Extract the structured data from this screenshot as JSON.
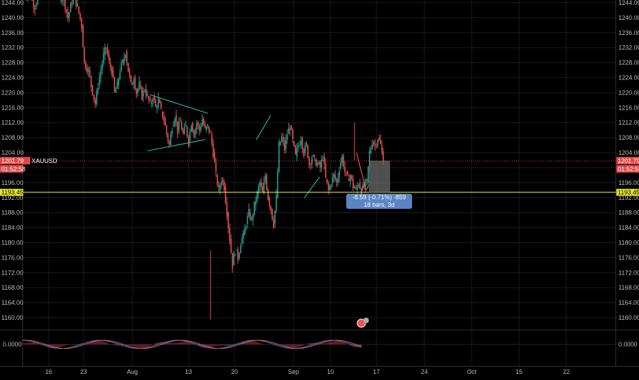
{
  "chart_data": {
    "type": "candlestick",
    "symbol": "XAUUSD",
    "ylim": [
      1158,
      1245
    ],
    "y_ticks": [
      "1244.00",
      "1240.00",
      "1236.00",
      "1232.00",
      "1228.00",
      "1224.00",
      "1220.00",
      "1216.00",
      "1212.00",
      "1208.00",
      "1204.00",
      "1200.00",
      "1196.00",
      "1192.00",
      "1188.00",
      "1184.00",
      "1180.00",
      "1176.00",
      "1172.00",
      "1168.00",
      "1164.00",
      "1160.00"
    ],
    "x_ticks": [
      "16",
      "23",
      "Aug",
      "13",
      "20",
      "Sep",
      "10",
      "17",
      "24",
      "Oct",
      "15",
      "22"
    ],
    "current_price": {
      "value": 1201.79,
      "label": "1201.79",
      "countdown": "01:52:58"
    },
    "horizontal_level": {
      "value": 1193.45,
      "label": "1193.45"
    },
    "measure": {
      "line1": "-8.59 (-0.71%) -859",
      "line2": "18 bars, 3d"
    },
    "close_path": [
      [
        0,
        1245
      ],
      [
        8,
        1247
      ],
      [
        18,
        1243
      ],
      [
        26,
        1248
      ],
      [
        34,
        1246
      ],
      [
        44,
        1249
      ],
      [
        52,
        1246
      ],
      [
        60,
        1245
      ],
      [
        66,
        1240
      ],
      [
        74,
        1246
      ],
      [
        80,
        1243
      ],
      [
        86,
        1238
      ],
      [
        90,
        1228
      ],
      [
        96,
        1226
      ],
      [
        100,
        1222
      ],
      [
        106,
        1217
      ],
      [
        110,
        1222
      ],
      [
        114,
        1226
      ],
      [
        118,
        1230
      ],
      [
        122,
        1232
      ],
      [
        126,
        1228
      ],
      [
        130,
        1226
      ],
      [
        134,
        1220
      ],
      [
        138,
        1222
      ],
      [
        142,
        1226
      ],
      [
        146,
        1228
      ],
      [
        150,
        1231
      ],
      [
        154,
        1226
      ],
      [
        158,
        1222
      ],
      [
        162,
        1224
      ],
      [
        166,
        1220
      ],
      [
        170,
        1222
      ],
      [
        174,
        1219
      ],
      [
        178,
        1221
      ],
      [
        182,
        1219
      ],
      [
        186,
        1217
      ],
      [
        190,
        1219
      ],
      [
        194,
        1216
      ],
      [
        198,
        1218
      ],
      [
        202,
        1215
      ],
      [
        206,
        1213
      ],
      [
        210,
        1209
      ],
      [
        214,
        1206
      ],
      [
        218,
        1211
      ],
      [
        222,
        1214
      ],
      [
        226,
        1210
      ],
      [
        230,
        1212
      ],
      [
        234,
        1209
      ],
      [
        238,
        1211
      ],
      [
        242,
        1207
      ],
      [
        246,
        1212
      ],
      [
        250,
        1209
      ],
      [
        254,
        1212
      ],
      [
        258,
        1210
      ],
      [
        262,
        1213
      ],
      [
        266,
        1210
      ],
      [
        270,
        1211
      ],
      [
        274,
        1209
      ],
      [
        278,
        1204
      ],
      [
        282,
        1198
      ],
      [
        286,
        1194
      ],
      [
        290,
        1197
      ],
      [
        294,
        1195
      ],
      [
        298,
        1188
      ],
      [
        302,
        1181
      ],
      [
        306,
        1174
      ],
      [
        310,
        1178
      ],
      [
        314,
        1176
      ],
      [
        318,
        1180
      ],
      [
        322,
        1182
      ],
      [
        326,
        1185
      ],
      [
        330,
        1188
      ],
      [
        334,
        1186
      ],
      [
        338,
        1190
      ],
      [
        342,
        1193
      ],
      [
        346,
        1196
      ],
      [
        350,
        1193
      ],
      [
        354,
        1198
      ],
      [
        358,
        1192
      ],
      [
        362,
        1189
      ],
      [
        366,
        1185
      ],
      [
        370,
        1192
      ],
      [
        374,
        1206
      ],
      [
        378,
        1208
      ],
      [
        382,
        1205
      ],
      [
        386,
        1209
      ],
      [
        390,
        1211
      ],
      [
        394,
        1207
      ],
      [
        398,
        1203
      ],
      [
        402,
        1206
      ],
      [
        406,
        1208
      ],
      [
        410,
        1204
      ],
      [
        414,
        1206
      ],
      [
        418,
        1201
      ],
      [
        422,
        1203
      ],
      [
        426,
        1202
      ],
      [
        430,
        1201
      ],
      [
        434,
        1200
      ],
      [
        438,
        1203
      ],
      [
        442,
        1197
      ],
      [
        446,
        1194
      ],
      [
        450,
        1196
      ],
      [
        454,
        1198
      ],
      [
        458,
        1196
      ],
      [
        462,
        1200
      ],
      [
        466,
        1203
      ],
      [
        470,
        1199
      ],
      [
        474,
        1197
      ],
      [
        478,
        1198
      ],
      [
        482,
        1195
      ],
      [
        486,
        1194
      ],
      [
        490,
        1196
      ],
      [
        494,
        1194
      ],
      [
        498,
        1195
      ],
      [
        502,
        1196
      ],
      [
        506,
        1204
      ],
      [
        510,
        1207
      ],
      [
        514,
        1206
      ],
      [
        518,
        1208
      ],
      [
        522,
        1206
      ],
      [
        526,
        1202
      ]
    ],
    "oscillator": {
      "zero_label": "0.0000"
    },
    "trendlines": [
      {
        "from": [
          218,
          1219.5
        ],
        "to": [
          303,
          1214.5
        ]
      },
      {
        "from": [
          215,
          1204.5
        ],
        "to": [
          299,
          1207.5
        ]
      },
      {
        "from": [
          374,
          1207.5
        ],
        "to": [
          395,
          1214
        ]
      },
      {
        "from": [
          444,
          1192
        ],
        "to": [
          466,
          1197.5
        ]
      }
    ],
    "shaded_box": {
      "x0": 538,
      "x1": 569,
      "y0": 1201.9,
      "y1": 1193.4
    },
    "arrow": {
      "from": [
        520,
        1204
      ],
      "to": [
        534,
        1194
      ]
    }
  }
}
